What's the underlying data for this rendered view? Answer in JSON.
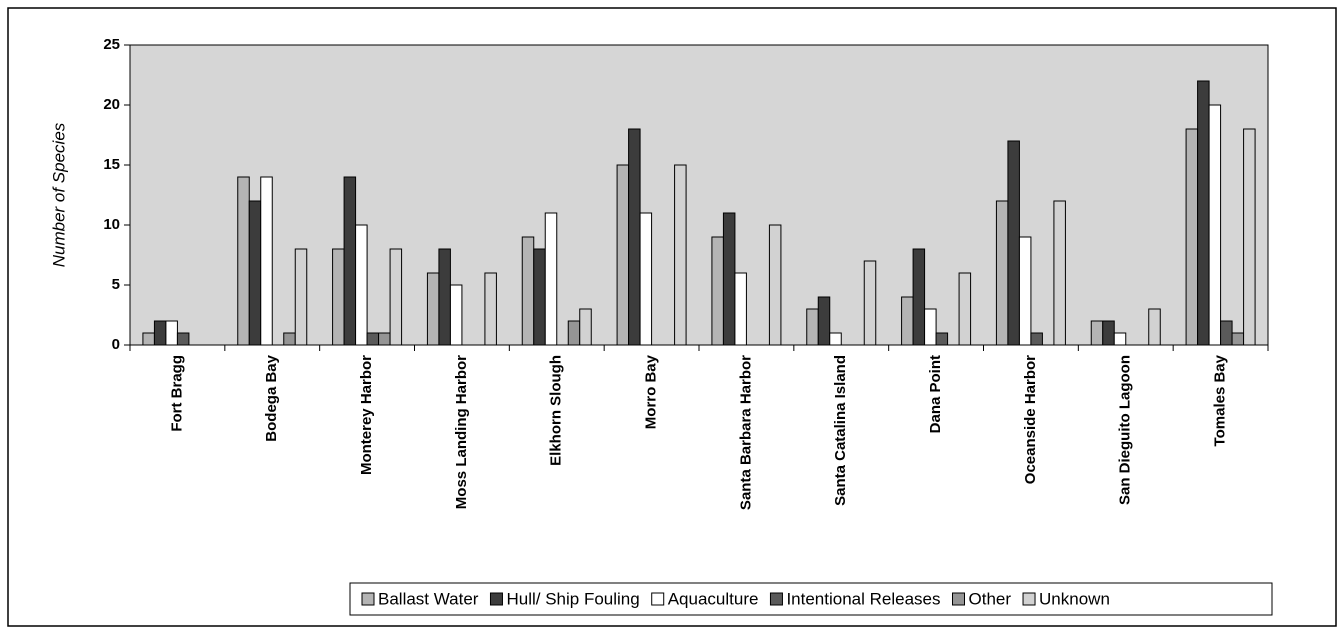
{
  "chart_data": {
    "type": "bar",
    "y_label": "Number of Species",
    "categories": [
      "Fort Bragg",
      "Bodega Bay",
      "Monterey Harbor",
      "Moss Landing Harbor",
      "Elkhorn Slough",
      "Morro Bay",
      "Santa Barbara Harbor",
      "Santa Catalina Island",
      "Dana Point",
      "Oceanside Harbor",
      "San Dieguito Lagoon",
      "Tomales Bay"
    ],
    "series": [
      {
        "name": "Ballast Water",
        "color": "#b4b4b4",
        "values": [
          1,
          14,
          8,
          6,
          9,
          15,
          9,
          3,
          4,
          12,
          2,
          18
        ]
      },
      {
        "name": "Hull/ Ship Fouling",
        "color": "#3c3c3c",
        "values": [
          2,
          12,
          14,
          8,
          8,
          18,
          11,
          4,
          8,
          17,
          2,
          22
        ]
      },
      {
        "name": "Aquaculture",
        "color": "#ffffff",
        "values": [
          2,
          14,
          10,
          5,
          11,
          11,
          6,
          1,
          3,
          9,
          1,
          20
        ]
      },
      {
        "name": "Intentional Releases",
        "color": "#5a5a5a",
        "values": [
          1,
          0,
          1,
          0,
          0,
          0,
          0,
          0,
          1,
          1,
          0,
          2
        ]
      },
      {
        "name": "Other",
        "color": "#959595",
        "values": [
          0,
          1,
          1,
          0,
          2,
          0,
          0,
          0,
          0,
          0,
          0,
          1
        ]
      },
      {
        "name": "Unknown",
        "color": "#d2d2d2",
        "values": [
          0,
          8,
          8,
          6,
          3,
          15,
          10,
          7,
          6,
          12,
          3,
          18
        ]
      }
    ],
    "ylim": [
      0,
      25
    ],
    "yticks": [
      0,
      5,
      10,
      15,
      20,
      25
    ],
    "grid": false,
    "legend": "bottom"
  }
}
